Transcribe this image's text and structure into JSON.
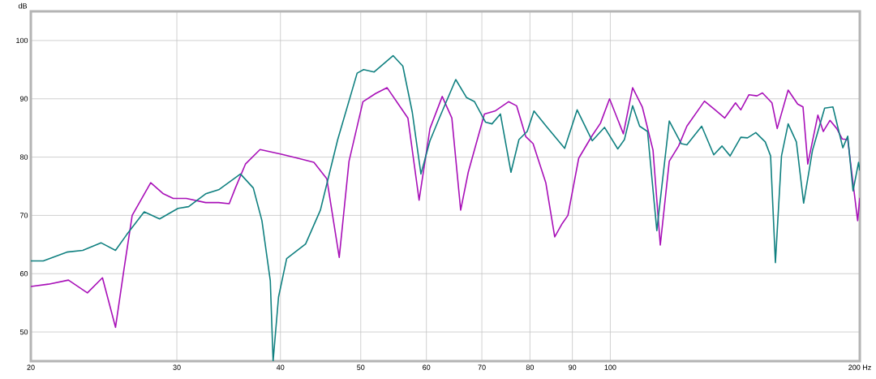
{
  "chart_data": {
    "type": "line",
    "ylabel": "dB",
    "xlim": [
      20,
      200
    ],
    "ylim": [
      45,
      105
    ],
    "log": "x",
    "grid": true,
    "xticks": [
      20,
      30,
      40,
      50,
      60,
      70,
      80,
      90,
      100,
      {
        "value": 200,
        "label": "200 Hz"
      }
    ],
    "yticks": [
      50,
      60,
      70,
      80,
      90,
      100
    ],
    "series": [
      {
        "color": "#a810b8",
        "x": [
          20,
          21.0,
          22.2,
          23.4,
          24.4,
          25.3,
          25.9,
          26.5,
          27.9,
          28.9,
          29.7,
          30.8,
          32.5,
          33.7,
          34.7,
          35.3,
          36.3,
          37.8,
          40.1,
          42.0,
          43.9,
          45.5,
          47.1,
          48.4,
          50.3,
          52.1,
          53.8,
          55.8,
          57.0,
          58.8,
          60.6,
          62.7,
          64.4,
          66.0,
          67.4,
          70.5,
          72.6,
          75.4,
          77.1,
          79.1,
          80.7,
          83.6,
          85.7,
          87.5,
          88.9,
          91.6,
          95.1,
          97.3,
          99.8,
          103.7,
          106.4,
          109.3,
          112.6,
          114.9,
          117.8,
          120.9,
          123.7,
          129.9,
          133.8,
          137.4,
          141.6,
          143.7,
          147.0,
          150.3,
          152.6,
          156.7,
          159.0,
          163.9,
          168.3,
          170.8,
          173.1,
          178.0,
          180.7,
          184.1,
          187.6,
          190.5,
          193.4,
          198.8,
          200
        ],
        "values": [
          57.8,
          58.2,
          58.9,
          56.7,
          59.3,
          50.8,
          60.7,
          70.0,
          75.6,
          73.7,
          72.9,
          72.9,
          72.2,
          72.2,
          72.0,
          74.7,
          78.8,
          81.3,
          80.5,
          79.8,
          79.1,
          76.3,
          62.8,
          79.3,
          89.5,
          90.9,
          91.9,
          88.6,
          86.7,
          72.6,
          84.9,
          90.4,
          86.7,
          70.9,
          77.4,
          87.4,
          87.9,
          89.5,
          88.8,
          83.5,
          82.3,
          75.6,
          66.3,
          68.6,
          70.0,
          79.8,
          83.7,
          85.8,
          90.0,
          84.0,
          91.9,
          88.6,
          81.2,
          64.9,
          79.3,
          81.9,
          85.3,
          89.6,
          88.1,
          86.7,
          89.3,
          88.1,
          90.7,
          90.5,
          91.0,
          89.3,
          84.9,
          91.5,
          89.1,
          88.6,
          78.8,
          87.2,
          84.4,
          86.3,
          84.9,
          83.1,
          83.0,
          69.1,
          73.0
        ]
      },
      {
        "color": "#108080",
        "x": [
          20,
          20.7,
          22.1,
          23.1,
          24.3,
          25.3,
          26.1,
          27.4,
          28.6,
          30.1,
          31.0,
          32.5,
          33.7,
          35.8,
          37.1,
          38.0,
          38.9,
          39.2,
          39.8,
          40.7,
          42.9,
          44.7,
          46.9,
          49.5,
          50.4,
          51.9,
          54.7,
          56.2,
          57.7,
          59.1,
          60.6,
          62.2,
          65.1,
          67.1,
          68.6,
          70.7,
          72.0,
          73.7,
          75.9,
          77.6,
          79.4,
          80.9,
          83.7,
          88.1,
          91.2,
          95.1,
          98.4,
          102.1,
          104.0,
          106.4,
          108.5,
          110.9,
          113.8,
          117.8,
          121.8,
          123.7,
          128.9,
          133.3,
          136.4,
          139.5,
          143.7,
          146.4,
          149.8,
          153.8,
          156.1,
          158.2,
          160.9,
          163.9,
          167.7,
          171.1,
          175.4,
          181.4,
          185.6,
          190.8,
          193.4,
          196.3,
          199.3,
          200
        ],
        "values": [
          62.2,
          62.2,
          63.7,
          64.0,
          65.3,
          64.0,
          66.7,
          70.6,
          69.4,
          71.2,
          71.5,
          73.7,
          74.4,
          77.1,
          74.7,
          69.1,
          58.8,
          45.0,
          56.0,
          62.6,
          65.1,
          70.9,
          83.0,
          94.4,
          95.0,
          94.6,
          97.4,
          95.6,
          87.7,
          77.1,
          82.8,
          86.7,
          93.3,
          90.2,
          89.5,
          86.0,
          85.7,
          87.4,
          77.4,
          83.0,
          84.4,
          87.9,
          85.3,
          81.5,
          88.1,
          82.8,
          85.1,
          81.4,
          83.0,
          88.8,
          85.3,
          84.4,
          67.4,
          86.2,
          82.3,
          82.1,
          85.3,
          80.4,
          81.9,
          80.2,
          83.4,
          83.3,
          84.2,
          82.6,
          80.2,
          61.9,
          80.2,
          85.7,
          82.6,
          72.1,
          81.2,
          88.4,
          88.6,
          81.6,
          83.6,
          74.2,
          79.1,
          77.7
        ]
      }
    ]
  }
}
